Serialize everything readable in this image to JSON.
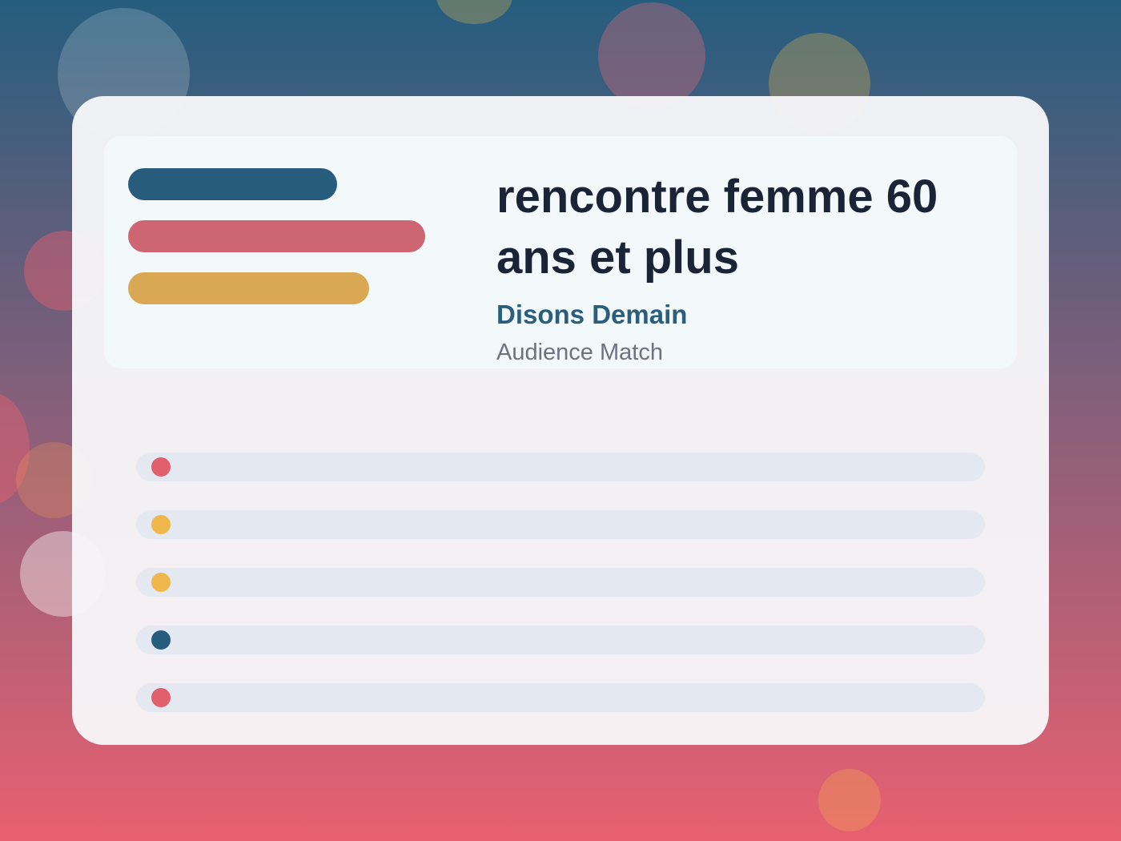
{
  "header": {
    "title": "rencontre femme 60 ans et plus",
    "subtitle": "Disons Demain",
    "tagline": "Audience Match"
  }
}
